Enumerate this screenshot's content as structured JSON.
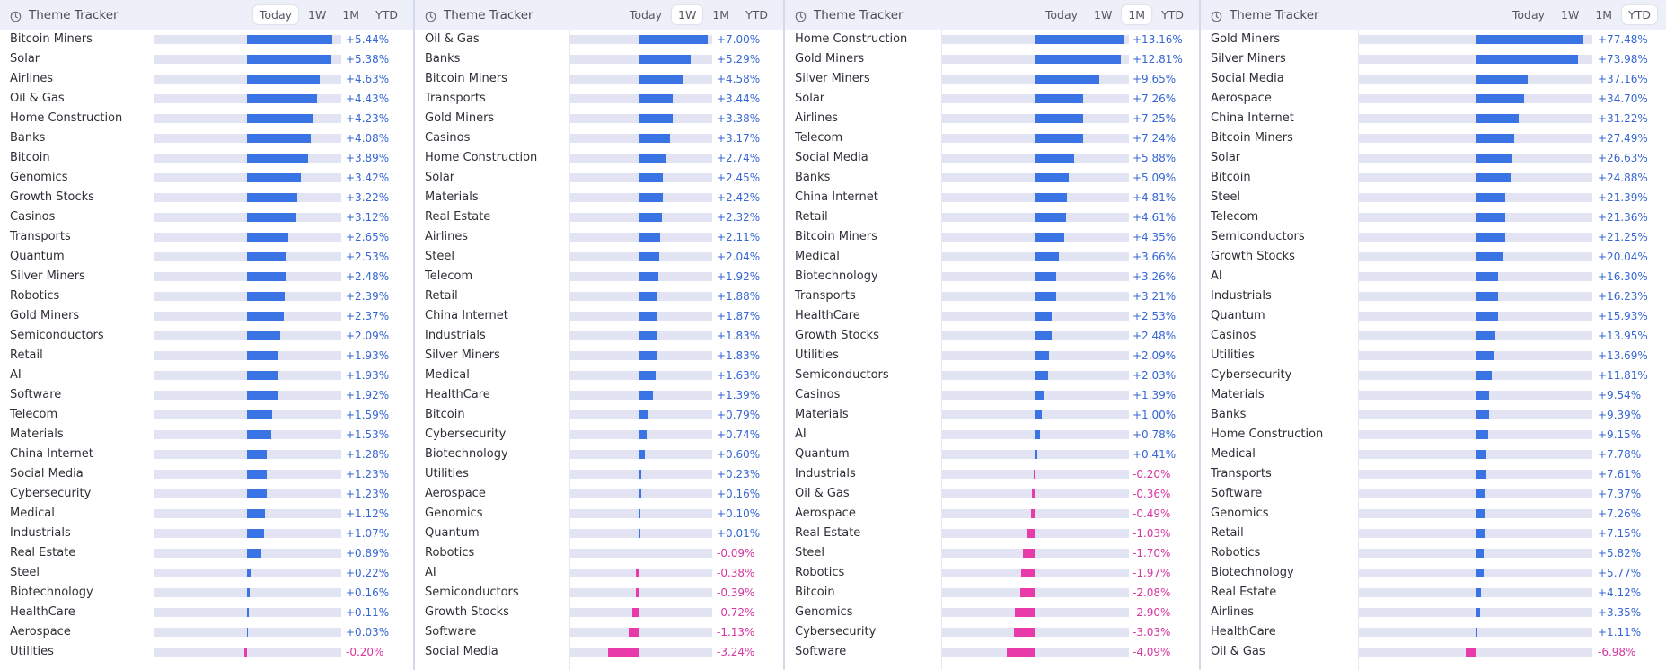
{
  "colors": {
    "positive": "#3a73e3",
    "negative": "#e93aa9",
    "track": "#e2e4f3",
    "header_bg": "#eef0f9"
  },
  "icons": {
    "panel": "clock-icon"
  },
  "panels": [
    {
      "title": "Theme Tracker",
      "tabs": [
        "Today",
        "1W",
        "1M",
        "YTD"
      ],
      "active": "Today",
      "max": 6.0,
      "rows": [
        {
          "label": "Bitcoin Miners",
          "value": 5.44,
          "display": "+5.44%"
        },
        {
          "label": "Solar",
          "value": 5.38,
          "display": "+5.38%"
        },
        {
          "label": "Airlines",
          "value": 4.63,
          "display": "+4.63%"
        },
        {
          "label": "Oil & Gas",
          "value": 4.43,
          "display": "+4.43%"
        },
        {
          "label": "Home Construction",
          "value": 4.23,
          "display": "+4.23%"
        },
        {
          "label": "Banks",
          "value": 4.08,
          "display": "+4.08%"
        },
        {
          "label": "Bitcoin",
          "value": 3.89,
          "display": "+3.89%"
        },
        {
          "label": "Genomics",
          "value": 3.42,
          "display": "+3.42%"
        },
        {
          "label": "Growth Stocks",
          "value": 3.22,
          "display": "+3.22%"
        },
        {
          "label": "Casinos",
          "value": 3.12,
          "display": "+3.12%"
        },
        {
          "label": "Transports",
          "value": 2.65,
          "display": "+2.65%"
        },
        {
          "label": "Quantum",
          "value": 2.53,
          "display": "+2.53%"
        },
        {
          "label": "Silver Miners",
          "value": 2.48,
          "display": "+2.48%"
        },
        {
          "label": "Robotics",
          "value": 2.39,
          "display": "+2.39%"
        },
        {
          "label": "Gold Miners",
          "value": 2.37,
          "display": "+2.37%"
        },
        {
          "label": "Semiconductors",
          "value": 2.09,
          "display": "+2.09%"
        },
        {
          "label": "Retail",
          "value": 1.93,
          "display": "+1.93%"
        },
        {
          "label": "AI",
          "value": 1.93,
          "display": "+1.93%"
        },
        {
          "label": "Software",
          "value": 1.92,
          "display": "+1.92%"
        },
        {
          "label": "Telecom",
          "value": 1.59,
          "display": "+1.59%"
        },
        {
          "label": "Materials",
          "value": 1.53,
          "display": "+1.53%"
        },
        {
          "label": "China Internet",
          "value": 1.28,
          "display": "+1.28%"
        },
        {
          "label": "Social Media",
          "value": 1.23,
          "display": "+1.23%"
        },
        {
          "label": "Cybersecurity",
          "value": 1.23,
          "display": "+1.23%"
        },
        {
          "label": "Medical",
          "value": 1.12,
          "display": "+1.12%"
        },
        {
          "label": "Industrials",
          "value": 1.07,
          "display": "+1.07%"
        },
        {
          "label": "Real Estate",
          "value": 0.89,
          "display": "+0.89%"
        },
        {
          "label": "Steel",
          "value": 0.22,
          "display": "+0.22%"
        },
        {
          "label": "Biotechnology",
          "value": 0.16,
          "display": "+0.16%"
        },
        {
          "label": "HealthCare",
          "value": 0.11,
          "display": "+0.11%"
        },
        {
          "label": "Aerospace",
          "value": 0.03,
          "display": "+0.03%"
        },
        {
          "label": "Utilities",
          "value": -0.2,
          "display": "-0.20%"
        }
      ]
    },
    {
      "title": "Theme Tracker",
      "tabs": [
        "Today",
        "1W",
        "1M",
        "YTD"
      ],
      "active": "1W",
      "max": 7.5,
      "rows": [
        {
          "label": "Oil & Gas",
          "value": 7.0,
          "display": "+7.00%"
        },
        {
          "label": "Banks",
          "value": 5.29,
          "display": "+5.29%"
        },
        {
          "label": "Bitcoin Miners",
          "value": 4.58,
          "display": "+4.58%"
        },
        {
          "label": "Transports",
          "value": 3.44,
          "display": "+3.44%"
        },
        {
          "label": "Gold Miners",
          "value": 3.38,
          "display": "+3.38%"
        },
        {
          "label": "Casinos",
          "value": 3.17,
          "display": "+3.17%"
        },
        {
          "label": "Home Construction",
          "value": 2.74,
          "display": "+2.74%"
        },
        {
          "label": "Solar",
          "value": 2.45,
          "display": "+2.45%"
        },
        {
          "label": "Materials",
          "value": 2.42,
          "display": "+2.42%"
        },
        {
          "label": "Real Estate",
          "value": 2.32,
          "display": "+2.32%"
        },
        {
          "label": "Airlines",
          "value": 2.11,
          "display": "+2.11%"
        },
        {
          "label": "Steel",
          "value": 2.04,
          "display": "+2.04%"
        },
        {
          "label": "Telecom",
          "value": 1.92,
          "display": "+1.92%"
        },
        {
          "label": "Retail",
          "value": 1.88,
          "display": "+1.88%"
        },
        {
          "label": "China Internet",
          "value": 1.87,
          "display": "+1.87%"
        },
        {
          "label": "Industrials",
          "value": 1.83,
          "display": "+1.83%"
        },
        {
          "label": "Silver Miners",
          "value": 1.83,
          "display": "+1.83%"
        },
        {
          "label": "Medical",
          "value": 1.63,
          "display": "+1.63%"
        },
        {
          "label": "HealthCare",
          "value": 1.39,
          "display": "+1.39%"
        },
        {
          "label": "Bitcoin",
          "value": 0.79,
          "display": "+0.79%"
        },
        {
          "label": "Cybersecurity",
          "value": 0.74,
          "display": "+0.74%"
        },
        {
          "label": "Biotechnology",
          "value": 0.6,
          "display": "+0.60%"
        },
        {
          "label": "Utilities",
          "value": 0.23,
          "display": "+0.23%"
        },
        {
          "label": "Aerospace",
          "value": 0.16,
          "display": "+0.16%"
        },
        {
          "label": "Genomics",
          "value": 0.1,
          "display": "+0.10%"
        },
        {
          "label": "Quantum",
          "value": 0.01,
          "display": "+0.01%"
        },
        {
          "label": "Robotics",
          "value": -0.09,
          "display": "-0.09%"
        },
        {
          "label": "AI",
          "value": -0.38,
          "display": "-0.38%"
        },
        {
          "label": "Semiconductors",
          "value": -0.39,
          "display": "-0.39%"
        },
        {
          "label": "Growth Stocks",
          "value": -0.72,
          "display": "-0.72%"
        },
        {
          "label": "Software",
          "value": -1.13,
          "display": "-1.13%"
        },
        {
          "label": "Social Media",
          "value": -3.24,
          "display": "-3.24%"
        }
      ]
    },
    {
      "title": "Theme Tracker",
      "tabs": [
        "Today",
        "1W",
        "1M",
        "YTD"
      ],
      "active": "1M",
      "max": 14.0,
      "rows": [
        {
          "label": "Home Construction",
          "value": 13.16,
          "display": "+13.16%"
        },
        {
          "label": "Gold Miners",
          "value": 12.81,
          "display": "+12.81%"
        },
        {
          "label": "Silver Miners",
          "value": 9.65,
          "display": "+9.65%"
        },
        {
          "label": "Solar",
          "value": 7.26,
          "display": "+7.26%"
        },
        {
          "label": "Airlines",
          "value": 7.25,
          "display": "+7.25%"
        },
        {
          "label": "Telecom",
          "value": 7.24,
          "display": "+7.24%"
        },
        {
          "label": "Social Media",
          "value": 5.88,
          "display": "+5.88%"
        },
        {
          "label": "Banks",
          "value": 5.09,
          "display": "+5.09%"
        },
        {
          "label": "China Internet",
          "value": 4.81,
          "display": "+4.81%"
        },
        {
          "label": "Retail",
          "value": 4.61,
          "display": "+4.61%"
        },
        {
          "label": "Bitcoin Miners",
          "value": 4.35,
          "display": "+4.35%"
        },
        {
          "label": "Medical",
          "value": 3.66,
          "display": "+3.66%"
        },
        {
          "label": "Biotechnology",
          "value": 3.26,
          "display": "+3.26%"
        },
        {
          "label": "Transports",
          "value": 3.21,
          "display": "+3.21%"
        },
        {
          "label": "HealthCare",
          "value": 2.53,
          "display": "+2.53%"
        },
        {
          "label": "Growth Stocks",
          "value": 2.48,
          "display": "+2.48%"
        },
        {
          "label": "Utilities",
          "value": 2.09,
          "display": "+2.09%"
        },
        {
          "label": "Semiconductors",
          "value": 2.03,
          "display": "+2.03%"
        },
        {
          "label": "Casinos",
          "value": 1.39,
          "display": "+1.39%"
        },
        {
          "label": "Materials",
          "value": 1.0,
          "display": "+1.00%"
        },
        {
          "label": "AI",
          "value": 0.78,
          "display": "+0.78%"
        },
        {
          "label": "Quantum",
          "value": 0.41,
          "display": "+0.41%"
        },
        {
          "label": "Industrials",
          "value": -0.2,
          "display": "-0.20%"
        },
        {
          "label": "Oil & Gas",
          "value": -0.36,
          "display": "-0.36%"
        },
        {
          "label": "Aerospace",
          "value": -0.49,
          "display": "-0.49%"
        },
        {
          "label": "Real Estate",
          "value": -1.03,
          "display": "-1.03%"
        },
        {
          "label": "Steel",
          "value": -1.7,
          "display": "-1.70%"
        },
        {
          "label": "Robotics",
          "value": -1.97,
          "display": "-1.97%"
        },
        {
          "label": "Bitcoin",
          "value": -2.08,
          "display": "-2.08%"
        },
        {
          "label": "Genomics",
          "value": -2.9,
          "display": "-2.90%"
        },
        {
          "label": "Cybersecurity",
          "value": -3.03,
          "display": "-3.03%"
        },
        {
          "label": "Software",
          "value": -4.09,
          "display": "-4.09%"
        }
      ]
    },
    {
      "title": "Theme Tracker",
      "tabs": [
        "Today",
        "1W",
        "1M",
        "YTD"
      ],
      "active": "YTD",
      "max": 84.0,
      "rows": [
        {
          "label": "Gold Miners",
          "value": 77.48,
          "display": "+77.48%"
        },
        {
          "label": "Silver Miners",
          "value": 73.98,
          "display": "+73.98%"
        },
        {
          "label": "Social Media",
          "value": 37.16,
          "display": "+37.16%"
        },
        {
          "label": "Aerospace",
          "value": 34.7,
          "display": "+34.70%"
        },
        {
          "label": "China Internet",
          "value": 31.22,
          "display": "+31.22%"
        },
        {
          "label": "Bitcoin Miners",
          "value": 27.49,
          "display": "+27.49%"
        },
        {
          "label": "Solar",
          "value": 26.63,
          "display": "+26.63%"
        },
        {
          "label": "Bitcoin",
          "value": 24.88,
          "display": "+24.88%"
        },
        {
          "label": "Steel",
          "value": 21.39,
          "display": "+21.39%"
        },
        {
          "label": "Telecom",
          "value": 21.36,
          "display": "+21.36%"
        },
        {
          "label": "Semiconductors",
          "value": 21.25,
          "display": "+21.25%"
        },
        {
          "label": "Growth Stocks",
          "value": 20.04,
          "display": "+20.04%"
        },
        {
          "label": "AI",
          "value": 16.3,
          "display": "+16.30%"
        },
        {
          "label": "Industrials",
          "value": 16.23,
          "display": "+16.23%"
        },
        {
          "label": "Quantum",
          "value": 15.93,
          "display": "+15.93%"
        },
        {
          "label": "Casinos",
          "value": 13.95,
          "display": "+13.95%"
        },
        {
          "label": "Utilities",
          "value": 13.69,
          "display": "+13.69%"
        },
        {
          "label": "Cybersecurity",
          "value": 11.81,
          "display": "+11.81%"
        },
        {
          "label": "Materials",
          "value": 9.54,
          "display": "+9.54%"
        },
        {
          "label": "Banks",
          "value": 9.39,
          "display": "+9.39%"
        },
        {
          "label": "Home Construction",
          "value": 9.15,
          "display": "+9.15%"
        },
        {
          "label": "Medical",
          "value": 7.78,
          "display": "+7.78%"
        },
        {
          "label": "Transports",
          "value": 7.61,
          "display": "+7.61%"
        },
        {
          "label": "Software",
          "value": 7.37,
          "display": "+7.37%"
        },
        {
          "label": "Genomics",
          "value": 7.26,
          "display": "+7.26%"
        },
        {
          "label": "Retail",
          "value": 7.15,
          "display": "+7.15%"
        },
        {
          "label": "Robotics",
          "value": 5.82,
          "display": "+5.82%"
        },
        {
          "label": "Biotechnology",
          "value": 5.77,
          "display": "+5.77%"
        },
        {
          "label": "Real Estate",
          "value": 4.12,
          "display": "+4.12%"
        },
        {
          "label": "Airlines",
          "value": 3.35,
          "display": "+3.35%"
        },
        {
          "label": "HealthCare",
          "value": 1.11,
          "display": "+1.11%"
        },
        {
          "label": "Oil & Gas",
          "value": -6.98,
          "display": "-6.98%"
        }
      ]
    }
  ]
}
